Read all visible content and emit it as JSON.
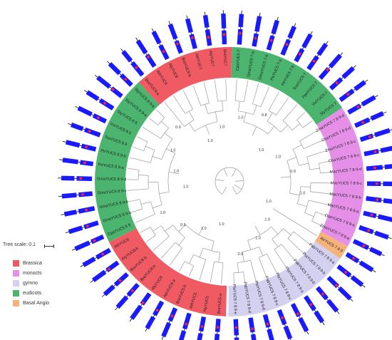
{
  "scale": {
    "label": "Tree scale: 0.1"
  },
  "legend": [
    {
      "label": "Brassica",
      "color": "#f05a62"
    },
    {
      "label": "monocts",
      "color": "#e58fe8"
    },
    {
      "label": "gymno",
      "color": "#d4d0f0"
    },
    {
      "label": "eudicots",
      "color": "#4bb46e"
    },
    {
      "label": "Basal Angio",
      "color": "#f5b37a"
    }
  ],
  "colors": {
    "gene_body": "#1a1aff",
    "motif_mark": "#ff2a2a",
    "branch": "#9a9a9a",
    "text": "#222222"
  },
  "groups": [
    {
      "name": "Brassica",
      "color": "#f05a62",
      "leaves": [
        "BraYUC5-a",
        "AlyYUC5",
        "AthYUC5",
        "BraYUC5-b",
        "AthYUC8-a",
        "AlyYUC8",
        "BraYUC8-a",
        "BraYUC8-b",
        "AlyYUC8-b",
        "AthYUC8"
      ]
    },
    {
      "name": "eudicots",
      "color": "#4bb46e",
      "leaves": [
        "CpaYUC5 8 9",
        "GmaYUC5 8 9-a",
        "GmaYUC5 8 9-b",
        "GmaYUC5 8 9-c",
        "GmaYUC5 8 9-d",
        "PtrYUC5 8 9-a",
        "PtrYUC5 8 9-b",
        "TcaYUC5 8 9",
        "VviYUC5 8 9",
        "StyYUC5 8 9",
        "SlyYUC5 8 9-a",
        "SlyYUC5 8 9-b"
      ]
    },
    {
      "name": "Brassica",
      "color": "#f05a62",
      "leaves": [
        "BraYUC9-a",
        "AthYUC9",
        "AlyYUC9",
        "BraYUC9-b",
        "AthYUC7",
        "AlyYUC7",
        "BraYUC7"
      ]
    },
    {
      "name": "eudicots",
      "color": "#4bb46e",
      "leaves": [
        "CpaYUC5 7",
        "GmaYUC5 7-a",
        "GmaYUC5 7-b",
        "PtrYUC5 7-a",
        "PtrYUC5 7-b",
        "TcaYUC5 7",
        "PpeYUC5 7",
        "VviYUC5 7",
        "SlyYUC5 7"
      ]
    },
    {
      "name": "monocts",
      "color": "#e58fe8",
      "leaves": [
        "ZmaYUC5 7 8 9-d",
        "OsaYUC5 7 8 9-d",
        "ZmaYUC5 7 8 9-c",
        "OsaYUC5 7 8 9-c",
        "MacYUC5 7 8 9-d",
        "MacYUC5 7 8 9-c",
        "MacYUC5 7 8 9-b",
        "MacYUC5 7 8 9-a",
        "OsaYUC5 7 8 9-a",
        "ZmaYUC5 7 8 9-a"
      ]
    },
    {
      "name": "Basal Angio",
      "color": "#f5b37a",
      "leaves": [
        "AtrYUC5 7 8 9"
      ]
    },
    {
      "name": "gymno",
      "color": "#d4d0f0",
      "leaves": [
        "PabYUC5 7 8 9-a",
        "PtaYUC5 7 8 9-b",
        "PabYUC5 7 8 9-b",
        "PtaYUC5 7 8 9-a",
        "PtaYUC5 7 8 9-c",
        "PabYUC5 7 8 9-c",
        "PtaYUC5 7 8 9-d",
        "PabYUC5 7 8 9-d",
        "PtaYUC5 7 8 9-e"
      ]
    }
  ],
  "bootstrap_labels": [
    "1.0",
    "1.0",
    "0.6",
    "1.0",
    "1.0",
    "1.0",
    "1.0",
    "0.9",
    "1.0",
    "1.0",
    "1.0",
    "0.8",
    "1.0",
    "1.0",
    "0.9",
    "1.0",
    "1.0",
    "1.0",
    "1.0",
    "0.9"
  ]
}
